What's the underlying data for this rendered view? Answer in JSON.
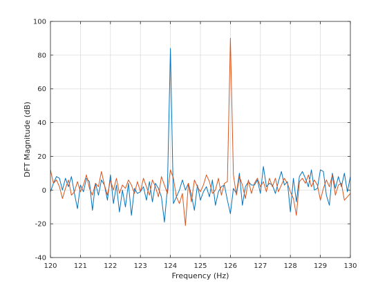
{
  "chart_data": {
    "type": "line",
    "title": "",
    "xlabel": "Frequency (Hz)",
    "ylabel": "DFT Magnitude (dB)",
    "xlim": [
      120,
      130
    ],
    "ylim": [
      -40,
      100
    ],
    "xticks": [
      120,
      121,
      122,
      123,
      124,
      125,
      126,
      127,
      128,
      129,
      130
    ],
    "yticks": [
      -40,
      -20,
      0,
      20,
      40,
      60,
      80,
      100
    ],
    "grid": true,
    "legend": "none",
    "series": [
      {
        "color": "#0072BD",
        "x": [
          120,
          120.1,
          120.2,
          120.3,
          120.4,
          120.5,
          120.6,
          120.7,
          120.8,
          120.9,
          121,
          121.1,
          121.2,
          121.3,
          121.4,
          121.5,
          121.6,
          121.7,
          121.8,
          121.9,
          122,
          122.1,
          122.2,
          122.3,
          122.4,
          122.5,
          122.6,
          122.7,
          122.8,
          122.9,
          123,
          123.1,
          123.2,
          123.3,
          123.4,
          123.5,
          123.6,
          123.7,
          123.8,
          123.9,
          124,
          124.1,
          124.2,
          124.3,
          124.4,
          124.5,
          124.6,
          124.7,
          124.8,
          124.9,
          125,
          125.1,
          125.2,
          125.3,
          125.4,
          125.5,
          125.6,
          125.7,
          125.8,
          125.9,
          126,
          126.1,
          126.2,
          126.3,
          126.4,
          126.5,
          126.6,
          126.7,
          126.8,
          126.9,
          127,
          127.1,
          127.2,
          127.3,
          127.4,
          127.5,
          127.6,
          127.7,
          127.8,
          127.9,
          128,
          128.1,
          128.2,
          128.3,
          128.4,
          128.5,
          128.6,
          128.7,
          128.8,
          128.9,
          129,
          129.1,
          129.2,
          129.3,
          129.4,
          129.5,
          129.6,
          129.7,
          129.8,
          129.9,
          130
        ],
        "y": [
          -1,
          4,
          8,
          7,
          0,
          7,
          2,
          8,
          -2,
          -11,
          3,
          -1,
          7,
          5,
          -12,
          4,
          -3,
          6,
          3,
          -6,
          9,
          -8,
          3,
          -13,
          0,
          -10,
          4,
          -15,
          1,
          -2,
          -1,
          2,
          -6,
          5,
          -7,
          4,
          1,
          -4,
          -19,
          1,
          84,
          -8,
          -4,
          0,
          6,
          0,
          4,
          -3,
          -12,
          3,
          -6,
          -1,
          2,
          -4,
          6,
          -9,
          -1,
          2,
          3,
          -6,
          -14,
          1,
          -2,
          10,
          -9,
          2,
          5,
          3,
          3,
          6,
          -2,
          14,
          2,
          4,
          3,
          -2,
          5,
          11,
          3,
          5,
          -13,
          7,
          -7,
          8,
          11,
          7,
          2,
          12,
          0,
          1,
          12,
          11,
          -3,
          -9,
          10,
          1,
          8,
          2,
          10,
          -1,
          8
        ]
      },
      {
        "color": "#D95319",
        "x": [
          120,
          120.1,
          120.2,
          120.3,
          120.4,
          120.5,
          120.6,
          120.7,
          120.8,
          120.9,
          121,
          121.1,
          121.2,
          121.3,
          121.4,
          121.5,
          121.6,
          121.7,
          121.8,
          121.9,
          122,
          122.1,
          122.2,
          122.3,
          122.4,
          122.5,
          122.6,
          122.7,
          122.8,
          122.9,
          123,
          123.1,
          123.2,
          123.3,
          123.4,
          123.5,
          123.6,
          123.7,
          123.8,
          123.9,
          124,
          124.1,
          124.2,
          124.3,
          124.4,
          124.5,
          124.6,
          124.7,
          124.8,
          124.9,
          125,
          125.1,
          125.2,
          125.3,
          125.4,
          125.5,
          125.6,
          125.7,
          125.8,
          125.9,
          126,
          126.1,
          126.2,
          126.3,
          126.4,
          126.5,
          126.6,
          126.7,
          126.8,
          126.9,
          127,
          127.1,
          127.2,
          127.3,
          127.4,
          127.5,
          127.6,
          127.7,
          127.8,
          127.9,
          128,
          128.1,
          128.2,
          128.3,
          128.4,
          128.5,
          128.6,
          128.7,
          128.8,
          128.9,
          129,
          129.1,
          129.2,
          129.3,
          129.4,
          129.5,
          129.6,
          129.7,
          129.8,
          129.9,
          130
        ],
        "y": [
          12,
          4,
          6,
          2,
          -5,
          1,
          6,
          -3,
          -1,
          5,
          -1,
          3,
          9,
          1,
          -3,
          4,
          2,
          11,
          3,
          -3,
          6,
          0,
          7,
          -2,
          3,
          1,
          6,
          3,
          -2,
          5,
          -1,
          7,
          2,
          -3,
          6,
          2,
          -4,
          8,
          3,
          -2,
          12,
          7,
          -4,
          -8,
          -2,
          -21,
          4,
          -7,
          6,
          2,
          -1,
          3,
          9,
          5,
          -2,
          0,
          7,
          -3,
          4,
          5,
          90,
          9,
          -3,
          8,
          3,
          -5,
          6,
          -2,
          4,
          7,
          2,
          5,
          -1,
          7,
          2,
          7,
          -1,
          3,
          7,
          4,
          -1,
          -5,
          -15,
          5,
          7,
          4,
          9,
          2,
          6,
          3,
          -6,
          1,
          6,
          2,
          9,
          -3,
          3,
          4,
          -6,
          -4,
          -2
        ]
      }
    ]
  }
}
